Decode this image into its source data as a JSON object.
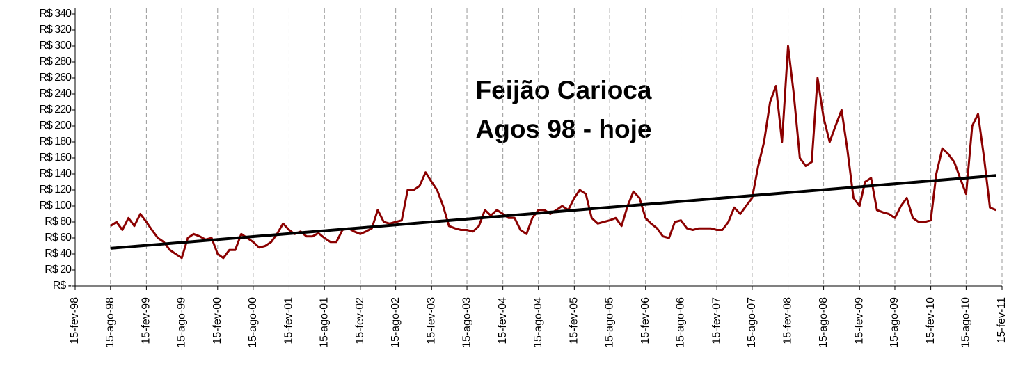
{
  "chart_data": {
    "type": "line",
    "title": "Feijão Carioca",
    "subtitle": "Agos 98 - hoje",
    "xlim": [
      "15-fev-98",
      "15-fev-11"
    ],
    "xticks": [
      "15-fev-98",
      "15-ago-98",
      "15-fev-99",
      "15-ago-99",
      "15-fev-00",
      "15-ago-00",
      "15-fev-01",
      "15-ago-01",
      "15-fev-02",
      "15-ago-02",
      "15-fev-03",
      "15-ago-03",
      "15-fev-04",
      "15-ago-04",
      "15-fev-05",
      "15-ago-05",
      "15-fev-06",
      "15-ago-06",
      "15-fev-07",
      "15-ago-07",
      "15-fev-08",
      "15-ago-08",
      "15-fev-09",
      "15-ago-09",
      "15-fev-10",
      "15-ago-10",
      "15-fev-11"
    ],
    "ylim": [
      0,
      340
    ],
    "yticks": [
      {
        "value": 0,
        "label": "R$ -"
      },
      {
        "value": 20,
        "label": "R$ 20"
      },
      {
        "value": 40,
        "label": "R$ 40"
      },
      {
        "value": 60,
        "label": "R$ 60"
      },
      {
        "value": 80,
        "label": "R$ 80"
      },
      {
        "value": 100,
        "label": "R$ 100"
      },
      {
        "value": 120,
        "label": "R$ 120"
      },
      {
        "value": 140,
        "label": "R$ 140"
      },
      {
        "value": 160,
        "label": "R$ 160"
      },
      {
        "value": 180,
        "label": "R$ 180"
      },
      {
        "value": 200,
        "label": "R$ 200"
      },
      {
        "value": 220,
        "label": "R$ 220"
      },
      {
        "value": 240,
        "label": "R$ 240"
      },
      {
        "value": 260,
        "label": "R$ 260"
      },
      {
        "value": 280,
        "label": "R$ 280"
      },
      {
        "value": 300,
        "label": "R$ 300"
      },
      {
        "value": 320,
        "label": "R$ 320"
      },
      {
        "value": 340,
        "label": "R$ 340"
      }
    ],
    "grid": true,
    "series": [
      {
        "color": "#8b0000",
        "x": [
          "15-ago-98",
          "15-set-98",
          "15-out-98",
          "15-nov-98",
          "15-dez-98",
          "15-jan-99",
          "15-fev-99",
          "15-mar-99",
          "15-abr-99",
          "15-mai-99",
          "15-jun-99",
          "15-jul-99",
          "15-ago-99",
          "15-set-99",
          "15-out-99",
          "15-nov-99",
          "15-dez-99",
          "15-jan-00",
          "15-fev-00",
          "15-mar-00",
          "15-abr-00",
          "15-mai-00",
          "15-jun-00",
          "15-jul-00",
          "15-ago-00",
          "15-set-00",
          "15-out-00",
          "15-nov-00",
          "15-dez-00",
          "15-jan-01",
          "15-fev-01",
          "15-mar-01",
          "15-abr-01",
          "15-mai-01",
          "15-jun-01",
          "15-jul-01",
          "15-ago-01",
          "15-set-01",
          "15-out-01",
          "15-nov-01",
          "15-dez-01",
          "15-jan-02",
          "15-fev-02",
          "15-mar-02",
          "15-abr-02",
          "15-mai-02",
          "15-jun-02",
          "15-jul-02",
          "15-ago-02",
          "15-set-02",
          "15-out-02",
          "15-nov-02",
          "15-dez-02",
          "15-jan-03",
          "15-fev-03",
          "15-mar-03",
          "15-abr-03",
          "15-mai-03",
          "15-jun-03",
          "15-jul-03",
          "15-ago-03",
          "15-set-03",
          "15-out-03",
          "15-nov-03",
          "15-dez-03",
          "15-jan-04",
          "15-fev-04",
          "15-mar-04",
          "15-abr-04",
          "15-mai-04",
          "15-jun-04",
          "15-jul-04",
          "15-ago-04",
          "15-set-04",
          "15-out-04",
          "15-nov-04",
          "15-dez-04",
          "15-jan-05",
          "15-fev-05",
          "15-mar-05",
          "15-abr-05",
          "15-mai-05",
          "15-jun-05",
          "15-jul-05",
          "15-ago-05",
          "15-set-05",
          "15-out-05",
          "15-nov-05",
          "15-dez-05",
          "15-jan-06",
          "15-fev-06",
          "15-mar-06",
          "15-abr-06",
          "15-mai-06",
          "15-jun-06",
          "15-jul-06",
          "15-ago-06",
          "15-set-06",
          "15-out-06",
          "15-nov-06",
          "15-dez-06",
          "15-jan-07",
          "15-fev-07",
          "15-mar-07",
          "15-abr-07",
          "15-mai-07",
          "15-jun-07",
          "15-jul-07",
          "15-ago-07",
          "15-set-07",
          "15-out-07",
          "15-nov-07",
          "15-dez-07",
          "15-jan-08",
          "15-fev-08",
          "15-mar-08",
          "15-abr-08",
          "15-mai-08",
          "15-jun-08",
          "15-jul-08",
          "15-ago-08",
          "15-set-08",
          "15-out-08",
          "15-nov-08",
          "15-dez-08",
          "15-jan-09",
          "15-fev-09",
          "15-mar-09",
          "15-abr-09",
          "15-mai-09",
          "15-jun-09",
          "15-jul-09",
          "15-ago-09",
          "15-set-09",
          "15-out-09",
          "15-nov-09",
          "15-dez-09",
          "15-jan-10",
          "15-fev-10",
          "15-mar-10",
          "15-abr-10",
          "15-mai-10",
          "15-jun-10",
          "15-jul-10",
          "15-ago-10",
          "15-set-10",
          "15-out-10",
          "15-nov-10",
          "15-dez-10",
          "15-jan-11"
        ],
        "values": [
          75,
          80,
          70,
          85,
          75,
          90,
          80,
          70,
          60,
          55,
          45,
          40,
          35,
          60,
          65,
          62,
          58,
          60,
          40,
          35,
          45,
          45,
          65,
          60,
          55,
          48,
          50,
          55,
          65,
          78,
          70,
          65,
          68,
          62,
          62,
          66,
          60,
          55,
          55,
          70,
          72,
          68,
          65,
          68,
          72,
          95,
          80,
          78,
          80,
          82,
          120,
          120,
          125,
          142,
          130,
          120,
          100,
          75,
          72,
          70,
          70,
          68,
          75,
          95,
          88,
          95,
          90,
          85,
          85,
          70,
          65,
          85,
          95,
          95,
          90,
          95,
          100,
          95,
          110,
          120,
          115,
          85,
          78,
          80,
          82,
          85,
          75,
          100,
          118,
          110,
          85,
          78,
          72,
          62,
          60,
          80,
          82,
          72,
          70,
          72,
          72,
          72,
          70,
          70,
          80,
          98,
          90,
          100,
          110,
          150,
          180,
          230,
          250,
          180,
          300,
          240,
          160,
          150,
          155,
          260,
          210,
          180,
          200,
          220,
          170,
          110,
          100,
          130,
          135,
          95,
          92,
          90,
          85,
          100,
          110,
          85,
          80,
          80,
          82,
          140,
          172,
          165,
          155,
          135,
          115,
          200,
          215,
          160,
          98,
          95
        ]
      },
      {
        "color": "#000000",
        "x": [
          "15-ago-98",
          "15-jan-11"
        ],
        "values": [
          47,
          138
        ]
      }
    ]
  }
}
